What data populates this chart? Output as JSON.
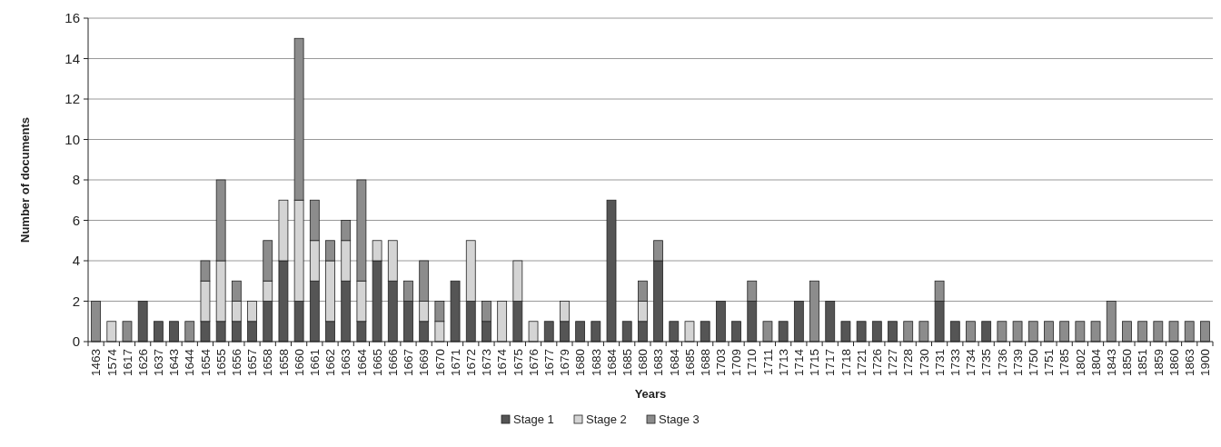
{
  "chart_data": {
    "type": "bar",
    "stacked": true,
    "xlabel": "Years",
    "ylabel": "Number of documents",
    "categories": [
      "1463",
      "1574",
      "1617",
      "1626",
      "1637",
      "1643",
      "1644",
      "1654",
      "1655",
      "1656",
      "1657",
      "1658",
      "1658",
      "1660",
      "1661",
      "1662",
      "1663",
      "1664",
      "1665",
      "1666",
      "1667",
      "1669",
      "1670",
      "1671",
      "1672",
      "1673",
      "1674",
      "1675",
      "1676",
      "1677",
      "1679",
      "1680",
      "1683",
      "1684",
      "1685",
      "1680",
      "1683",
      "1684",
      "1685",
      "1688",
      "1703",
      "1709",
      "1710",
      "1711",
      "1713",
      "1714",
      "1715",
      "1717",
      "1718",
      "1721",
      "1726",
      "1727",
      "1728",
      "1730",
      "1731",
      "1733",
      "1734",
      "1735",
      "1736",
      "1739",
      "1750",
      "1751",
      "1785",
      "1802",
      "1804",
      "1843",
      "1850",
      "1851",
      "1859",
      "1860",
      "1863",
      "1900"
    ],
    "series": [
      {
        "name": "Stage 1",
        "color": "#555555",
        "values": [
          0,
          0,
          0,
          2,
          1,
          1,
          0,
          1,
          1,
          1,
          1,
          2,
          4,
          2,
          3,
          1,
          3,
          1,
          4,
          3,
          2,
          1,
          0,
          3,
          2,
          1,
          0,
          2,
          0,
          1,
          1,
          1,
          1,
          7,
          1,
          1,
          4,
          1,
          0,
          1,
          2,
          1,
          2,
          0,
          1,
          2,
          0,
          2,
          1,
          1,
          1,
          1,
          0,
          0,
          2,
          1,
          0,
          1,
          0,
          0,
          0,
          0,
          0,
          0,
          0,
          0,
          0,
          0,
          0,
          0,
          0,
          0
        ]
      },
      {
        "name": "Stage 2",
        "color": "#d4d4d4",
        "values": [
          0,
          1,
          0,
          0,
          0,
          0,
          0,
          2,
          3,
          1,
          1,
          1,
          3,
          5,
          2,
          3,
          2,
          2,
          1,
          2,
          0,
          1,
          1,
          0,
          3,
          0,
          2,
          2,
          1,
          0,
          1,
          0,
          0,
          0,
          0,
          1,
          0,
          0,
          1,
          0,
          0,
          0,
          0,
          0,
          0,
          0,
          0,
          0,
          0,
          0,
          0,
          0,
          0,
          0,
          0,
          0,
          0,
          0,
          0,
          0,
          0,
          0,
          0,
          0,
          0,
          0,
          0,
          0,
          0,
          0,
          0,
          0
        ]
      },
      {
        "name": "Stage 3",
        "color": "#8c8c8c",
        "values": [
          2,
          0,
          1,
          0,
          0,
          0,
          1,
          1,
          4,
          1,
          0,
          2,
          0,
          8,
          2,
          1,
          1,
          5,
          0,
          0,
          1,
          2,
          1,
          0,
          0,
          1,
          0,
          0,
          0,
          0,
          0,
          0,
          0,
          0,
          0,
          1,
          1,
          0,
          0,
          0,
          0,
          0,
          1,
          1,
          0,
          0,
          3,
          0,
          0,
          0,
          0,
          0,
          1,
          1,
          1,
          0,
          1,
          0,
          1,
          1,
          1,
          1,
          1,
          1,
          1,
          2,
          1,
          1,
          1,
          1,
          1,
          1
        ]
      }
    ],
    "ylim": [
      0,
      16
    ],
    "yticks": [
      0,
      2,
      4,
      6,
      8,
      10,
      12,
      14,
      16
    ],
    "grid": "y",
    "legend": "bottom"
  }
}
